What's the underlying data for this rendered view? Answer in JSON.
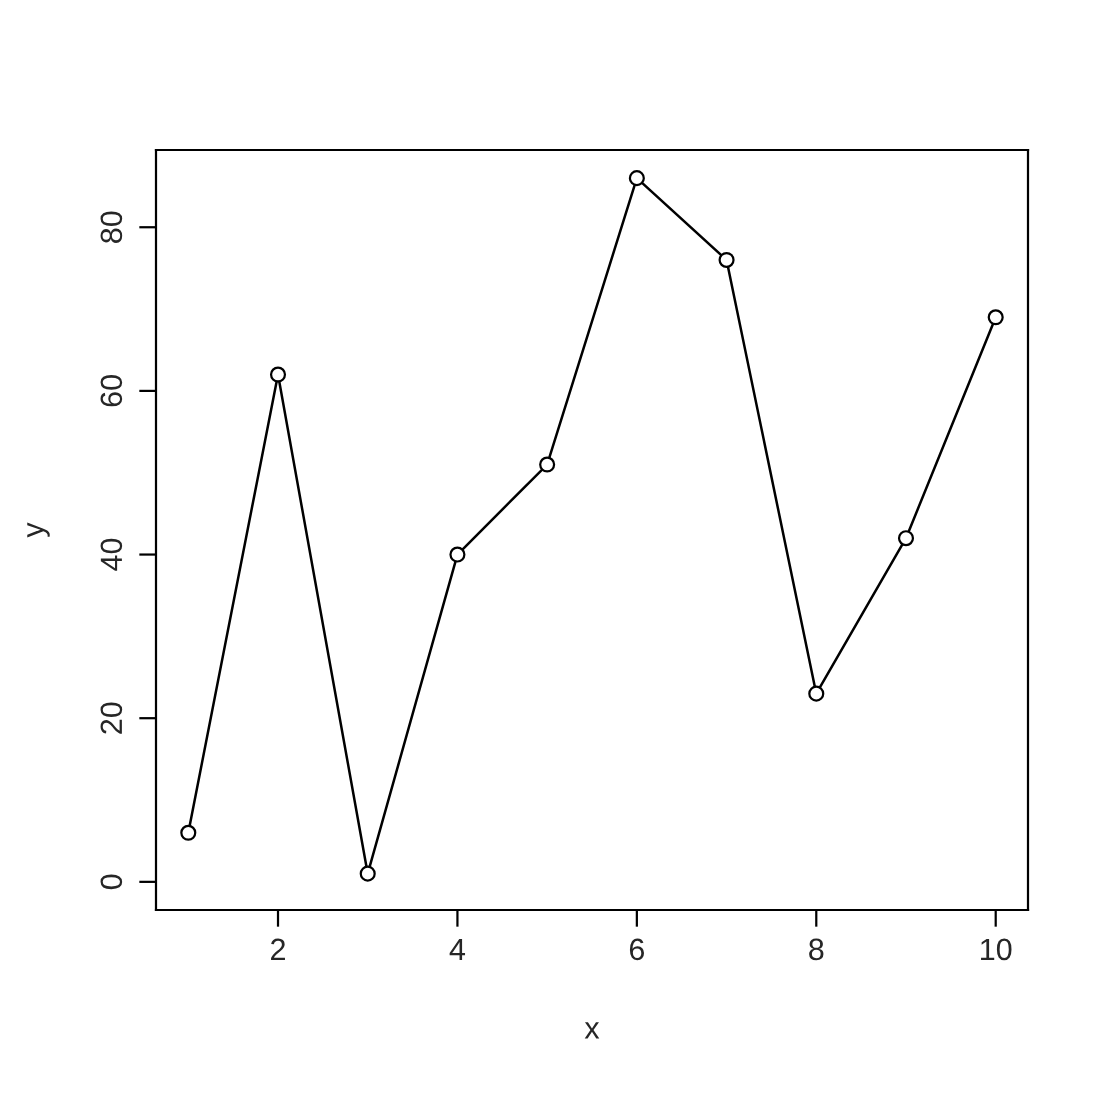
{
  "chart_data": {
    "type": "line",
    "xlabel": "x",
    "ylabel": "y",
    "x": [
      1,
      2,
      3,
      4,
      5,
      6,
      7,
      8,
      9,
      10
    ],
    "values": [
      6,
      62,
      1,
      40,
      51,
      86,
      76,
      23,
      42,
      69
    ],
    "color": "#000000",
    "marker": "circle",
    "line_style": "solid",
    "xlim": [
      0.64,
      10.36
    ],
    "ylim": [
      -3.44,
      89.44
    ],
    "xticks": [
      2,
      4,
      6,
      8,
      10
    ],
    "yticks": [
      0,
      20,
      40,
      60,
      80
    ],
    "grid": false,
    "legend": false
  }
}
